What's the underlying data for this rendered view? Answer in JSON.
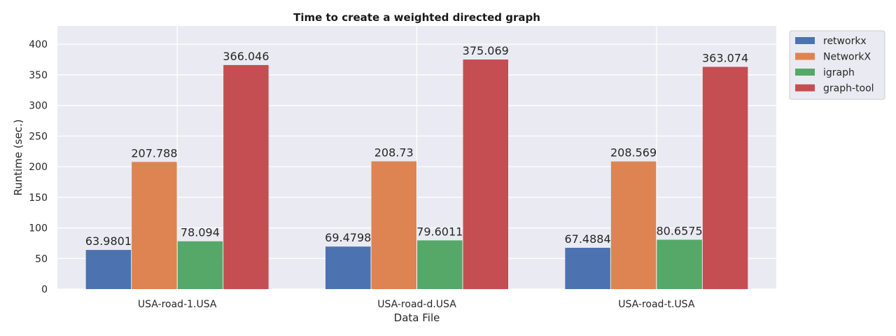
{
  "chart_data": {
    "type": "bar",
    "title": "Time to create a weighted directed graph",
    "xlabel": "Data File",
    "ylabel": "Runtime (sec.)",
    "categories": [
      "USA-road-1.USA",
      "USA-road-d.USA",
      "USA-road-t.USA"
    ],
    "ylim": [
      0,
      430
    ],
    "yticks": [
      0,
      50,
      100,
      150,
      200,
      250,
      300,
      350,
      400
    ],
    "grid": true,
    "legend_position": "outside-top-right",
    "background_color": "#eaeaf2",
    "series": [
      {
        "name": "retworkx",
        "color": "#4c72b0",
        "values": [
          63.9801,
          69.4798,
          67.4884
        ],
        "labels": [
          "63.9801",
          "69.4798",
          "67.4884"
        ]
      },
      {
        "name": "NetworkX",
        "color": "#dd8452",
        "values": [
          207.788,
          208.73,
          208.569
        ],
        "labels": [
          "207.788",
          "208.73",
          "208.569"
        ]
      },
      {
        "name": "igraph",
        "color": "#55a868",
        "values": [
          78.094,
          79.6011,
          80.6575
        ],
        "labels": [
          "78.094",
          "79.6011",
          "80.6575"
        ]
      },
      {
        "name": "graph-tool",
        "color": "#c44e52",
        "values": [
          366.046,
          375.069,
          363.074
        ],
        "labels": [
          "366.046",
          "375.069",
          "363.074"
        ]
      }
    ]
  }
}
